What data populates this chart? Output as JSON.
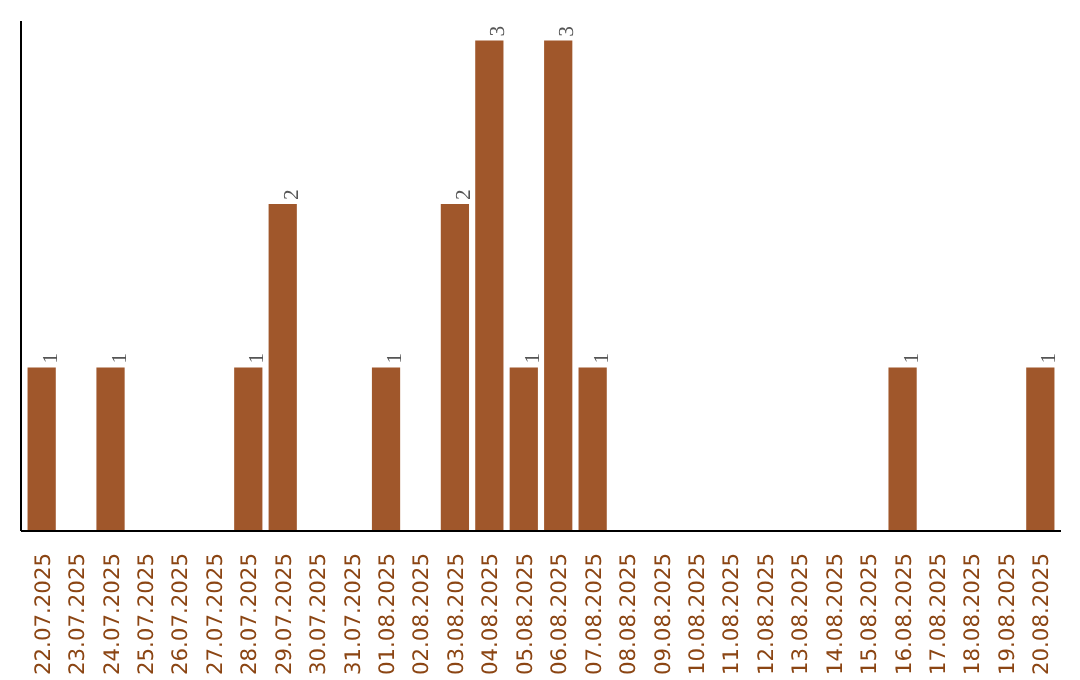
{
  "chart_data": {
    "type": "bar",
    "categories": [
      "22.07.2025",
      "23.07.2025",
      "24.07.2025",
      "25.07.2025",
      "26.07.2025",
      "27.07.2025",
      "28.07.2025",
      "29.07.2025",
      "30.07.2025",
      "31.07.2025",
      "01.08.2025",
      "02.08.2025",
      "03.08.2025",
      "04.08.2025",
      "05.08.2025",
      "06.08.2025",
      "07.08.2025",
      "08.08.2025",
      "09.08.2025",
      "10.08.2025",
      "11.08.2025",
      "12.08.2025",
      "13.08.2025",
      "14.08.2025",
      "15.08.2025",
      "16.08.2025",
      "17.08.2025",
      "18.08.2025",
      "19.08.2025",
      "20.08.2025"
    ],
    "values": [
      1,
      0,
      1,
      0,
      0,
      0,
      1,
      2,
      0,
      0,
      1,
      0,
      2,
      3,
      1,
      3,
      1,
      0,
      0,
      0,
      0,
      0,
      0,
      0,
      0,
      1,
      0,
      0,
      0,
      1
    ],
    "value_labels": [
      "1",
      null,
      "1",
      null,
      null,
      null,
      "1",
      "2",
      null,
      null,
      "1",
      null,
      "2",
      "3",
      "1",
      "3",
      "1",
      null,
      null,
      null,
      null,
      null,
      null,
      null,
      null,
      "1",
      null,
      null,
      null,
      "1"
    ],
    "color": "#a0572b",
    "tick_labels": "x",
    "grid": false
  }
}
